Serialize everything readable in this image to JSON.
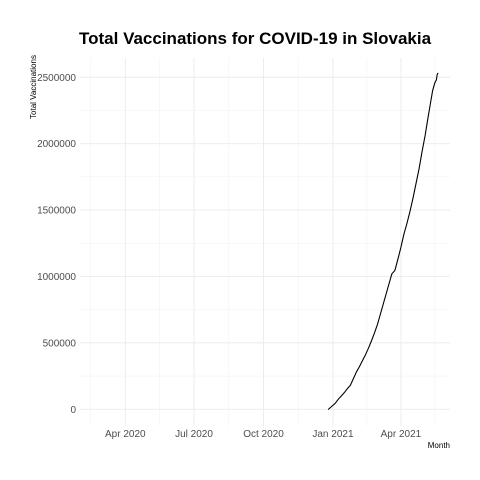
{
  "chart_data": {
    "type": "line",
    "title": "Total Vaccinations for COVID-19 in Slovakia",
    "xlabel": "Month",
    "ylabel": "Total Vaccinations",
    "x_ticks": [
      {
        "label": "Apr 2020",
        "date": "2020-04-01"
      },
      {
        "label": "Jul 2020",
        "date": "2020-07-01"
      },
      {
        "label": "Oct 2020",
        "date": "2020-10-01"
      },
      {
        "label": "Jan 2021",
        "date": "2021-01-01"
      },
      {
        "label": "Apr 2021",
        "date": "2021-04-01"
      }
    ],
    "x_minor_ticks": [
      "2020-02-15",
      "2020-05-16",
      "2020-08-16",
      "2020-11-16",
      "2021-02-15",
      "2021-05-16"
    ],
    "xlim": [
      "2020-02-01",
      "2021-06-05"
    ],
    "y_ticks": [
      {
        "label": "0",
        "value": 0
      },
      {
        "label": "500000",
        "value": 500000
      },
      {
        "label": "1000000",
        "value": 1000000
      },
      {
        "label": "1500000",
        "value": 1500000
      },
      {
        "label": "2000000",
        "value": 2000000
      },
      {
        "label": "2500000",
        "value": 2500000
      }
    ],
    "ylim": [
      -126000,
      2645000
    ],
    "grid": true,
    "series": [
      {
        "name": "Slovakia",
        "color": "#000000",
        "points": [
          {
            "date": "2020-12-26",
            "value": 0
          },
          {
            "date": "2020-12-30",
            "value": 20000
          },
          {
            "date": "2021-01-04",
            "value": 45000
          },
          {
            "date": "2021-01-08",
            "value": 75000
          },
          {
            "date": "2021-01-12",
            "value": 100000
          },
          {
            "date": "2021-01-16",
            "value": 125000
          },
          {
            "date": "2021-01-20",
            "value": 155000
          },
          {
            "date": "2021-01-24",
            "value": 180000
          },
          {
            "date": "2021-01-28",
            "value": 230000
          },
          {
            "date": "2021-02-01",
            "value": 280000
          },
          {
            "date": "2021-02-05",
            "value": 320000
          },
          {
            "date": "2021-02-09",
            "value": 365000
          },
          {
            "date": "2021-02-13",
            "value": 410000
          },
          {
            "date": "2021-02-17",
            "value": 460000
          },
          {
            "date": "2021-02-21",
            "value": 515000
          },
          {
            "date": "2021-02-25",
            "value": 575000
          },
          {
            "date": "2021-03-01",
            "value": 640000
          },
          {
            "date": "2021-03-05",
            "value": 720000
          },
          {
            "date": "2021-03-09",
            "value": 800000
          },
          {
            "date": "2021-03-13",
            "value": 880000
          },
          {
            "date": "2021-03-17",
            "value": 960000
          },
          {
            "date": "2021-03-20",
            "value": 1020000
          },
          {
            "date": "2021-03-24",
            "value": 1045000
          },
          {
            "date": "2021-03-28",
            "value": 1130000
          },
          {
            "date": "2021-04-01",
            "value": 1220000
          },
          {
            "date": "2021-04-05",
            "value": 1320000
          },
          {
            "date": "2021-04-09",
            "value": 1400000
          },
          {
            "date": "2021-04-13",
            "value": 1490000
          },
          {
            "date": "2021-04-17",
            "value": 1590000
          },
          {
            "date": "2021-04-21",
            "value": 1700000
          },
          {
            "date": "2021-04-25",
            "value": 1810000
          },
          {
            "date": "2021-04-29",
            "value": 1940000
          },
          {
            "date": "2021-05-03",
            "value": 2060000
          },
          {
            "date": "2021-05-07",
            "value": 2200000
          },
          {
            "date": "2021-05-10",
            "value": 2300000
          },
          {
            "date": "2021-05-13",
            "value": 2400000
          },
          {
            "date": "2021-05-16",
            "value": 2460000
          },
          {
            "date": "2021-05-18",
            "value": 2480000
          },
          {
            "date": "2021-05-19",
            "value": 2520000
          },
          {
            "date": "2021-05-20",
            "value": 2530000
          }
        ]
      }
    ]
  }
}
